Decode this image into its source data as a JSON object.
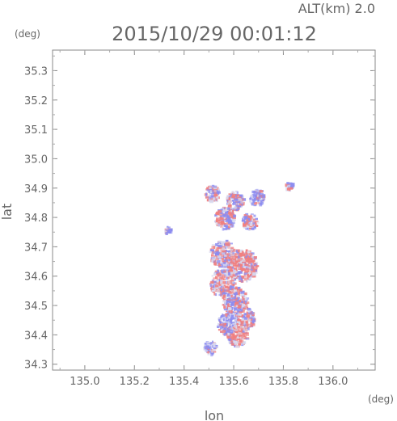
{
  "header": {
    "altitude_label": "ALT(km) 2.0",
    "timestamp": "2015/10/29 00:01:12",
    "y_unit": "(deg)",
    "x_unit": "(deg)"
  },
  "colors": {
    "positive": "#f08080",
    "negative": "#8c8cf0",
    "neutral": "#d8d8ee",
    "frame": "#888888"
  },
  "chart_data": {
    "type": "heatmap",
    "title": "2015/10/29 00:01:12",
    "subtitle": "ALT(km) 2.0",
    "xlabel": "lon",
    "ylabel": "lat",
    "x_unit": "(deg)",
    "y_unit": "(deg)",
    "xlim": [
      134.87,
      136.17
    ],
    "ylim": [
      34.28,
      35.37
    ],
    "x_ticks": [
      "135.0",
      "135.2",
      "135.4",
      "135.6",
      "135.8",
      "136.0"
    ],
    "y_ticks": [
      "34.3",
      "34.4",
      "34.5",
      "34.6",
      "34.7",
      "34.8",
      "34.9",
      "35.0",
      "35.1",
      "35.2",
      "35.3"
    ],
    "grid": false,
    "patches": [
      {
        "lon": 135.51,
        "lat": 34.885,
        "r": 0.03,
        "sign": "mixed"
      },
      {
        "lon": 135.6,
        "lat": 34.86,
        "r": 0.035,
        "sign": "mixed"
      },
      {
        "lon": 135.69,
        "lat": 34.87,
        "r": 0.03,
        "sign": "negative"
      },
      {
        "lon": 135.82,
        "lat": 34.91,
        "r": 0.015,
        "sign": "negative"
      },
      {
        "lon": 135.56,
        "lat": 34.8,
        "r": 0.04,
        "sign": "mixed"
      },
      {
        "lon": 135.66,
        "lat": 34.79,
        "r": 0.03,
        "sign": "mixed"
      },
      {
        "lon": 135.55,
        "lat": 34.68,
        "r": 0.05,
        "sign": "mixed"
      },
      {
        "lon": 135.63,
        "lat": 34.64,
        "r": 0.06,
        "sign": "positive"
      },
      {
        "lon": 135.55,
        "lat": 34.58,
        "r": 0.05,
        "sign": "positive"
      },
      {
        "lon": 135.6,
        "lat": 34.52,
        "r": 0.05,
        "sign": "mixed"
      },
      {
        "lon": 135.64,
        "lat": 34.46,
        "r": 0.04,
        "sign": "mixed"
      },
      {
        "lon": 135.57,
        "lat": 34.44,
        "r": 0.04,
        "sign": "negative"
      },
      {
        "lon": 135.61,
        "lat": 34.4,
        "r": 0.04,
        "sign": "positive"
      },
      {
        "lon": 135.5,
        "lat": 34.36,
        "r": 0.025,
        "sign": "negative"
      },
      {
        "lon": 135.33,
        "lat": 34.76,
        "r": 0.012,
        "sign": "negative"
      }
    ]
  }
}
